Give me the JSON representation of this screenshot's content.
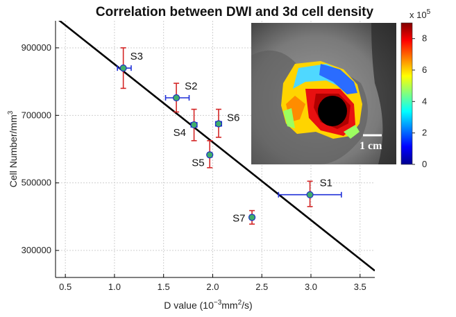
{
  "chart_data": {
    "type": "scatter",
    "title": "Correlation between DWI and 3d cell density",
    "xlabel": {
      "prefix": "D value (10",
      "sup1": "−3",
      "mid": "mm",
      "sup2": "2",
      "suffix": "/s)"
    },
    "ylabel": {
      "prefix": "Cell Number/mm",
      "sup": "3"
    },
    "xlim": [
      0.4,
      3.65
    ],
    "ylim": [
      220000,
      980000
    ],
    "xticks": [
      0.5,
      1.0,
      1.5,
      2.0,
      2.5,
      3.0,
      3.5
    ],
    "xtick_labels": [
      "0.5",
      "1.0",
      "1.5",
      "2.0",
      "2.5",
      "3.0",
      "3.5"
    ],
    "yticks": [
      300000,
      500000,
      700000,
      900000
    ],
    "ytick_labels": [
      "300000",
      "500000",
      "700000",
      "900000"
    ],
    "grid": true,
    "points": [
      {
        "label": "S1",
        "x": 2.99,
        "y": 465000,
        "xerr": [
          2.67,
          3.31
        ],
        "yerr": [
          430000,
          505000
        ]
      },
      {
        "label": "S2",
        "x": 1.63,
        "y": 752000,
        "xerr": [
          1.52,
          1.76
        ],
        "yerr": [
          710000,
          795000
        ]
      },
      {
        "label": "S3",
        "x": 1.09,
        "y": 840000,
        "xerr": [
          1.03,
          1.17
        ],
        "yerr": [
          780000,
          900000
        ]
      },
      {
        "label": "S4",
        "x": 1.81,
        "y": 672000,
        "xerr": [
          1.78,
          1.84
        ],
        "yerr": [
          625000,
          718000
        ]
      },
      {
        "label": "S5",
        "x": 1.97,
        "y": 583000,
        "xerr": [
          1.95,
          1.99
        ],
        "yerr": [
          545000,
          625000
        ]
      },
      {
        "label": "S6",
        "x": 2.06,
        "y": 675000,
        "xerr": [
          2.03,
          2.09
        ],
        "yerr": [
          635000,
          718000
        ]
      },
      {
        "label": "S7",
        "x": 2.4,
        "y": 398000,
        "xerr": [
          2.38,
          2.42
        ],
        "yerr": [
          378000,
          418000
        ]
      }
    ],
    "fit_line": {
      "x": [
        0.4,
        3.65
      ],
      "y": [
        990000,
        240000
      ]
    },
    "colors": {
      "marker_fill": "#3fae6b",
      "marker_edge": "#1e2fbf",
      "xerr": "#1f2fd8",
      "yerr": "#d42626",
      "fit": "#000000"
    }
  },
  "inset": {
    "colorbar_ticks": [
      "0",
      "2",
      "4",
      "6",
      "8"
    ],
    "colorbar_values": [
      0,
      2,
      4,
      6,
      8
    ],
    "colorbar_range": [
      0,
      9
    ],
    "colorbar_exponent_base": "x 10",
    "colorbar_exponent": "5",
    "scale_bar_label": "1 cm",
    "colormap": "jet"
  }
}
